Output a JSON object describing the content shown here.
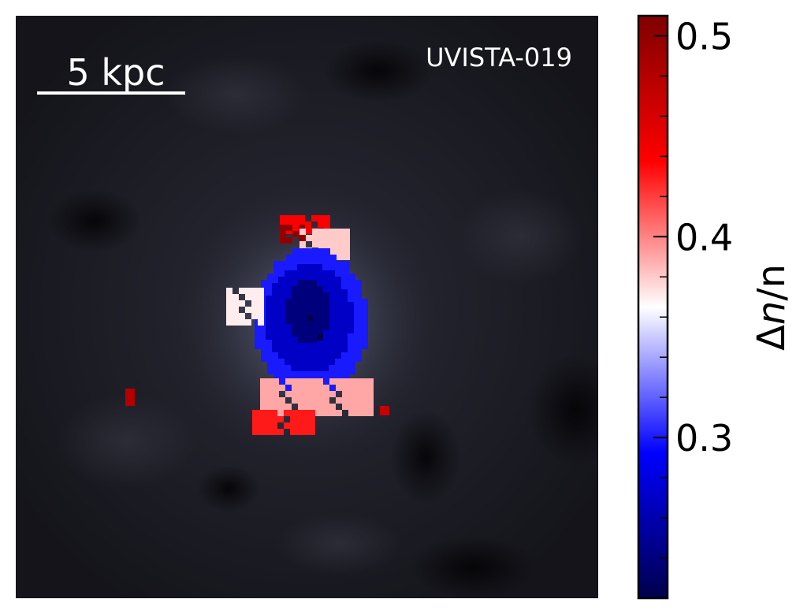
{
  "chart_data": {
    "type": "heatmap",
    "object_label": "UVISTA-019",
    "scale_bar_label": "5 kpc",
    "colorbar": {
      "label_prefix": "Δ",
      "label_var": "n",
      "label_suffix": "/n",
      "vmin": 0.22,
      "vmax": 0.51,
      "ticks": [
        0.3,
        0.4,
        0.5
      ],
      "tick_labels": [
        "0.3",
        "0.4",
        "0.5"
      ],
      "minor_tick_step": 0.02,
      "colormap": "seismic",
      "colors": [
        "#00004c",
        "#0000ff",
        "#ffffff",
        "#ff0000",
        "#7f0000"
      ]
    },
    "background_colors": {
      "dark": "#0d0d12",
      "mid": "#1e1e28",
      "glow": "#55596e"
    },
    "blobs": [
      {
        "name": "red-top",
        "value": 0.44
      },
      {
        "name": "dark-red-top",
        "value": 0.5
      },
      {
        "name": "pink-top",
        "value": 0.38
      },
      {
        "name": "core-outer",
        "value": 0.3
      },
      {
        "name": "core-mid",
        "value": 0.27
      },
      {
        "name": "core-inner",
        "value": 0.24
      },
      {
        "name": "left-ring",
        "value": 0.37
      },
      {
        "name": "bottom-ring",
        "value": 0.39
      },
      {
        "name": "bottom-red",
        "value": 0.43
      },
      {
        "name": "isolated-pixel-left",
        "value": 0.48
      },
      {
        "name": "isolated-pixel-right",
        "value": 0.47
      }
    ]
  }
}
